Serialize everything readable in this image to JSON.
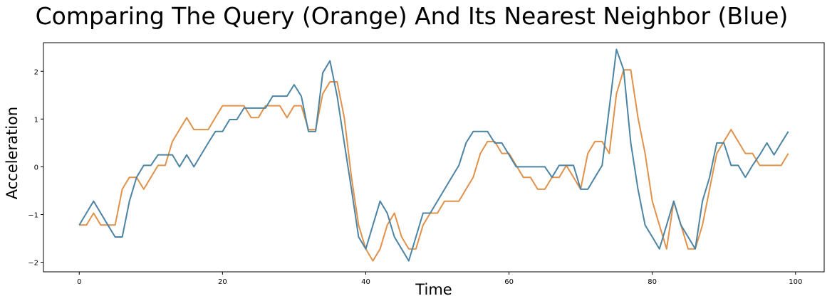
{
  "chart_data": {
    "type": "line",
    "title": "Comparing The Query (Orange) And Its Nearest Neighbor (Blue)",
    "xlabel": "Time",
    "ylabel": "Acceleration",
    "xlim": [
      -5,
      104
    ],
    "ylim": [
      -2.2,
      2.6
    ],
    "xticks": [
      0,
      20,
      40,
      60,
      80,
      100
    ],
    "yticks": [
      -2,
      -1,
      0,
      1,
      2
    ],
    "grid": false,
    "series": [
      {
        "color": "#e0924a",
        "values": [
          -1.22,
          -1.22,
          -0.97,
          -1.22,
          -1.22,
          -1.22,
          -0.47,
          -0.22,
          -0.22,
          -0.47,
          -0.22,
          0.03,
          0.03,
          0.53,
          0.78,
          1.03,
          0.78,
          0.78,
          0.78,
          1.03,
          1.28,
          1.28,
          1.28,
          1.28,
          1.03,
          1.03,
          1.28,
          1.28,
          1.28,
          1.03,
          1.28,
          1.28,
          0.78,
          0.78,
          1.53,
          1.78,
          1.78,
          1.03,
          -0.22,
          -1.22,
          -1.72,
          -1.97,
          -1.72,
          -1.22,
          -0.97,
          -1.47,
          -1.72,
          -1.72,
          -1.22,
          -0.97,
          -0.97,
          -0.72,
          -0.72,
          -0.72,
          -0.47,
          -0.22,
          0.28,
          0.53,
          0.53,
          0.28,
          0.28,
          0.03,
          -0.22,
          -0.22,
          -0.47,
          -0.47,
          -0.22,
          -0.22,
          0.03,
          -0.22,
          -0.47,
          0.28,
          0.53,
          0.53,
          0.28,
          1.53,
          2.03,
          2.03,
          1.03,
          0.28,
          -0.72,
          -1.22,
          -1.72,
          -0.72,
          -1.22,
          -1.72,
          -1.72,
          -1.22,
          -0.47,
          0.28,
          0.53,
          0.78,
          0.53,
          0.28,
          0.28,
          0.03,
          0.03,
          0.03,
          0.03,
          0.28
        ]
      },
      {
        "color": "#4c84a4",
        "values": [
          -1.22,
          -0.97,
          -0.72,
          -0.97,
          -1.22,
          -1.47,
          -1.47,
          -0.72,
          -0.22,
          0.03,
          0.03,
          0.25,
          0.25,
          0.25,
          0.0,
          0.25,
          0.0,
          0.25,
          0.5,
          0.74,
          0.74,
          0.99,
          0.99,
          1.23,
          1.23,
          1.23,
          1.23,
          1.48,
          1.48,
          1.48,
          1.72,
          1.48,
          0.74,
          0.74,
          1.97,
          2.22,
          1.48,
          0.5,
          -0.47,
          -1.47,
          -1.72,
          -1.22,
          -0.72,
          -0.97,
          -1.47,
          -1.72,
          -1.97,
          -1.47,
          -0.97,
          -0.97,
          -0.72,
          -0.47,
          -0.22,
          0.03,
          0.5,
          0.74,
          0.74,
          0.74,
          0.5,
          0.5,
          0.25,
          0.0,
          0.0,
          0.0,
          0.0,
          0.0,
          -0.22,
          0.03,
          0.03,
          0.03,
          -0.47,
          -0.47,
          -0.22,
          0.03,
          1.23,
          2.46,
          2.03,
          0.5,
          -0.47,
          -1.22,
          -1.47,
          -1.72,
          -1.22,
          -0.72,
          -1.22,
          -1.47,
          -1.72,
          -0.72,
          -0.22,
          0.5,
          0.5,
          0.03,
          0.03,
          -0.22,
          0.03,
          0.25,
          0.5,
          0.25,
          0.5,
          0.74
        ]
      }
    ]
  }
}
